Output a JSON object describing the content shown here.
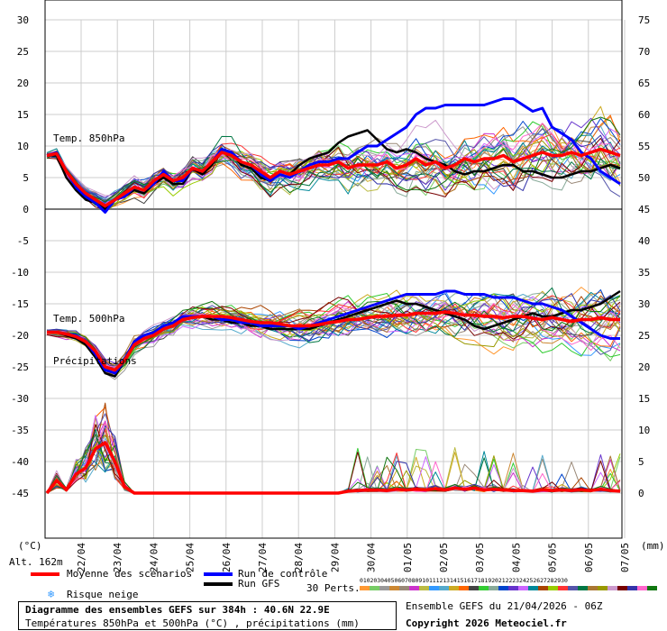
{
  "chart_data": {
    "type": "line",
    "title": "Diagramme des ensembles GEFS sur 384h : 40.6N 22.9E",
    "subtitle": "Températures 850hPa et 500hPa (°C) , précipitations (mm)",
    "left_axis": {
      "unit": "(°C)",
      "ticks": [
        30,
        25,
        20,
        15,
        10,
        5,
        0,
        -5,
        -10,
        -15,
        -20,
        -25,
        -30,
        -35,
        -40,
        -45
      ],
      "range": [
        -45,
        30
      ]
    },
    "right_axis": {
      "unit": "(mm)",
      "ticks": [
        75,
        70,
        65,
        60,
        55,
        50,
        45,
        40,
        35,
        30,
        25,
        20,
        15,
        10,
        5,
        0
      ],
      "range": [
        0,
        75
      ]
    },
    "x_labels": [
      "22/04",
      "23/04",
      "24/04",
      "25/04",
      "26/04",
      "27/04",
      "28/04",
      "29/04",
      "30/04",
      "01/05",
      "02/05",
      "03/05",
      "04/05",
      "05/05",
      "06/05",
      "07/05"
    ],
    "panel_labels": {
      "t850": "Temp. 850hPa",
      "t500": "Temp. 500hPa",
      "precip": "Précipitations"
    },
    "altitude": "Alt. 162m",
    "series": [
      {
        "name": "Moyenne des scénarios",
        "color": "#ff0000"
      },
      {
        "name": "Run de contrôle",
        "color": "#0000ff"
      },
      {
        "name": "Run GFS",
        "color": "#000000"
      }
    ],
    "mean_t850": [
      8.5,
      8.8,
      6,
      4,
      2.5,
      1.5,
      0.5,
      1.5,
      2.5,
      3.5,
      3,
      4.5,
      5.5,
      4.5,
      5,
      6.5,
      6,
      7.5,
      9,
      8.5,
      7.5,
      7,
      6,
      5,
      6,
      5.5,
      6,
      6.5,
      7,
      7,
      7.5,
      6.5,
      7,
      7,
      7,
      7.5,
      6.5,
      7,
      8,
      7,
      7.5,
      6.5,
      7,
      8,
      7.5,
      8,
      8,
      8.5,
      7.5,
      8,
      8.5,
      9,
      8.5,
      8.5,
      9,
      8.5,
      9,
      9.5,
      9,
      8.5
    ],
    "control_t850": [
      8.5,
      9,
      6,
      3.5,
      2,
      1,
      -0.5,
      1.5,
      2,
      3.5,
      3,
      4,
      6,
      4.5,
      4.5,
      6.5,
      6,
      7.5,
      9.5,
      9,
      7.5,
      7,
      5.5,
      4.5,
      5.5,
      5,
      6,
      7,
      7.5,
      7.5,
      8,
      8,
      9,
      10,
      10,
      11,
      12,
      13,
      15,
      16,
      16,
      16.5,
      16.5,
      16.5,
      16.5,
      16.5,
      17,
      17.5,
      17.5,
      16.5,
      15.5,
      16,
      13,
      12,
      11,
      9,
      8,
      6,
      5,
      4
    ],
    "gfs_t850": [
      8.5,
      8.5,
      5,
      3,
      1.5,
      1,
      0,
      1.5,
      2,
      3,
      2.5,
      4,
      5,
      4,
      4,
      6.5,
      5.5,
      7,
      9.5,
      9,
      7,
      6.5,
      5,
      4.5,
      6,
      5.5,
      7,
      8,
      8.5,
      9,
      10.5,
      11.5,
      12,
      12.5,
      11,
      9.5,
      9,
      9.5,
      9,
      8,
      7.5,
      7,
      6,
      5.5,
      6,
      6,
      6.5,
      7,
      7,
      6,
      6,
      5.5,
      5,
      5,
      5.5,
      6,
      6,
      6.5,
      7,
      6.5
    ],
    "mean_t500": [
      -19.5,
      -19.5,
      -19.8,
      -20.2,
      -21,
      -22.5,
      -25,
      -25.5,
      -24,
      -21.5,
      -20.5,
      -20,
      -19,
      -18.5,
      -17.5,
      -17.2,
      -17,
      -17,
      -17,
      -17.2,
      -17.5,
      -17.8,
      -18,
      -18,
      -18.2,
      -18.5,
      -18.5,
      -18.5,
      -18.3,
      -18,
      -17.8,
      -17.5,
      -17.5,
      -17.2,
      -17,
      -17,
      -16.8,
      -16.8,
      -16.5,
      -16.5,
      -16.5,
      -16.3,
      -16.5,
      -16.8,
      -16.8,
      -17,
      -17,
      -17.2,
      -17,
      -17,
      -17.3,
      -17.5,
      -17.2,
      -17.5,
      -17.8,
      -17.5,
      -17.5,
      -17.2,
      -17.5,
      -17.5
    ],
    "control_t500": [
      -19.5,
      -19.5,
      -19.8,
      -20,
      -21,
      -23,
      -25.5,
      -26,
      -24,
      -21,
      -20,
      -19.5,
      -18.5,
      -18,
      -17,
      -17,
      -17,
      -17,
      -17.5,
      -17.5,
      -18,
      -18,
      -18.5,
      -18.5,
      -18.5,
      -18.5,
      -19,
      -18.5,
      -18,
      -17.5,
      -17,
      -16.5,
      -16,
      -15.5,
      -15,
      -14.5,
      -14,
      -13.5,
      -13.5,
      -13.5,
      -13.5,
      -13,
      -13,
      -13.5,
      -13.5,
      -13.5,
      -14,
      -14,
      -14,
      -14.5,
      -15,
      -15,
      -15.5,
      -16,
      -17,
      -18,
      -19,
      -20,
      -20.5,
      -20.5
    ],
    "gfs_t500": [
      -19.5,
      -19.5,
      -20,
      -20.5,
      -21.5,
      -23.5,
      -26,
      -26.5,
      -24,
      -21,
      -20,
      -19.5,
      -18.5,
      -18,
      -17,
      -17,
      -17,
      -17.5,
      -17.5,
      -18,
      -18,
      -18.5,
      -18.5,
      -19,
      -19,
      -19,
      -19,
      -19,
      -18.5,
      -18,
      -17.5,
      -17,
      -16.5,
      -16,
      -15.5,
      -15,
      -14.5,
      -15,
      -15,
      -15.5,
      -16,
      -16.5,
      -17,
      -17.5,
      -18.5,
      -19,
      -18.5,
      -18,
      -17.5,
      -17,
      -16.5,
      -17,
      -17,
      -16.5,
      -16,
      -16,
      -15.5,
      -15,
      -14,
      -13
    ],
    "mean_precip": [
      0,
      2,
      0.5,
      3,
      4,
      7,
      8,
      5,
      1,
      0,
      0,
      0,
      0,
      0,
      0,
      0,
      0,
      0,
      0,
      0,
      0,
      0,
      0,
      0,
      0,
      0,
      0,
      0,
      0,
      0,
      0,
      0.3,
      0.4,
      0.5,
      0.5,
      0.4,
      0.6,
      0.5,
      0.6,
      0.5,
      0.7,
      0.5,
      0.8,
      0.6,
      0.8,
      0.5,
      0.6,
      0.5,
      0.4,
      0.4,
      0.3,
      0.5,
      0.4,
      0.5,
      0.4,
      0.5,
      0.4,
      0.6,
      0.4,
      0.3
    ],
    "footer_left_legend": "Risque neige",
    "perts_label": "30 Perts.",
    "run_info": "Ensemble GEFS du 21/04/2026 - 06Z",
    "copyright": "Copyright 2026 Meteociel.fr",
    "pert_colors": [
      "#ff9933",
      "#77cc66",
      "#999999",
      "#cc8833",
      "#998877",
      "#cc33cc",
      "#bbbb44",
      "#3399ff",
      "#55aacc",
      "#ccaa22",
      "#ff6600",
      "#444444",
      "#33cc33",
      "#88aa99",
      "#0044cc",
      "#6633cc",
      "#cc66ff",
      "#008899",
      "#aa4400",
      "#99cc00",
      "#ff3333",
      "#5555aa",
      "#007744",
      "#aa7733",
      "#999900",
      "#cc99cc",
      "#770000",
      "#3333aa",
      "#ff66cc",
      "#117711"
    ]
  }
}
